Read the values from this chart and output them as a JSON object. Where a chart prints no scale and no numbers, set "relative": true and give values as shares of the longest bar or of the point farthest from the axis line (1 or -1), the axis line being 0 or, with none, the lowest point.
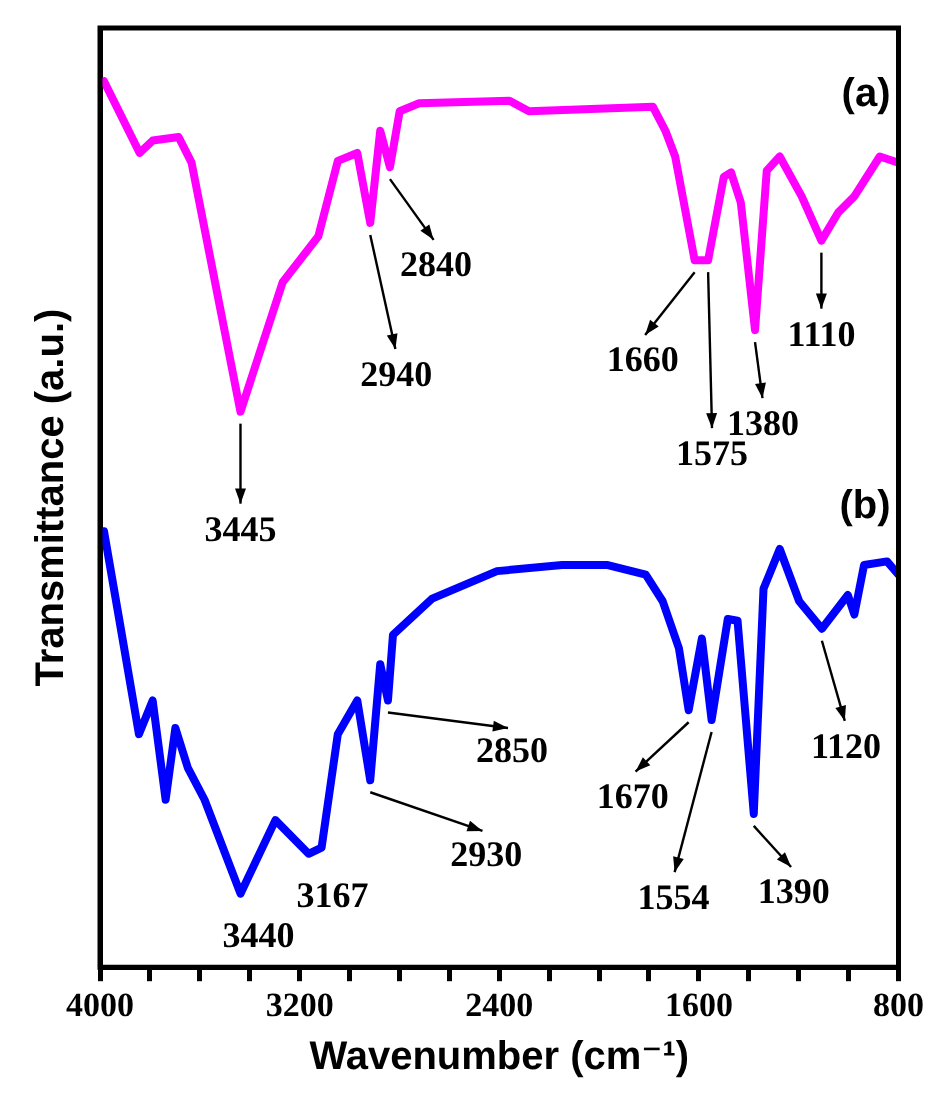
{
  "chart_data": {
    "type": "line",
    "relative": true,
    "xlabel": "Wavenumber (cm⁻¹)",
    "ylabel": "Transmittance (a.u.)",
    "xlim": [
      4000,
      800
    ],
    "xticks": [
      4000,
      {
        "value": 3800,
        "label": null
      },
      {
        "value": 3600,
        "label": null
      },
      {
        "value": 3400,
        "label": null
      },
      3200,
      {
        "value": 3000,
        "label": null
      },
      {
        "value": 2800,
        "label": null
      },
      {
        "value": 2600,
        "label": null
      },
      2400,
      {
        "value": 2200,
        "label": null
      },
      {
        "value": 2000,
        "label": null
      },
      {
        "value": 1800,
        "label": null
      },
      1600,
      {
        "value": 1400,
        "label": null
      },
      {
        "value": 1200,
        "label": null
      },
      {
        "value": 1000,
        "label": null
      },
      800
    ],
    "legend": false,
    "grid": false,
    "marker": "none",
    "line_style": "solid",
    "series": [
      {
        "name": "(a)",
        "color": "#ff00ff",
        "x": [
          3984,
          3841,
          3789,
          3685,
          3633,
          3437,
          3268,
          3125,
          3047,
          2969,
          2917,
          2877,
          2838,
          2799,
          2721,
          2359,
          2281,
          1784,
          1734,
          1695,
          1617,
          1563,
          1500,
          1471,
          1432,
          1375,
          1328,
          1276,
          1188,
          1109,
          1041,
          977,
          875,
          800
        ],
        "values": [
          1.0,
          0.919,
          0.933,
          0.937,
          0.908,
          0.627,
          0.773,
          0.825,
          0.91,
          0.919,
          0.84,
          0.944,
          0.903,
          0.966,
          0.975,
          0.978,
          0.966,
          0.971,
          0.944,
          0.915,
          0.798,
          0.798,
          0.892,
          0.897,
          0.863,
          0.719,
          0.899,
          0.915,
          0.87,
          0.82,
          0.852,
          0.87,
          0.915,
          0.908
        ]
      },
      {
        "name": "(b)",
        "color": "#0000ff",
        "x": [
          3984,
          3922,
          3844,
          3789,
          3737,
          3698,
          3648,
          3581,
          3437,
          3297,
          3164,
          3112,
          3047,
          2969,
          2917,
          2877,
          2846,
          2826,
          2669,
          2409,
          2148,
          1969,
          1813,
          1745,
          1680,
          1641,
          1588,
          1549,
          1484,
          1445,
          1380,
          1341,
          1276,
          1198,
          1107,
          1003,
          977,
          938,
          846,
          800
        ],
        "values": [
          0.492,
          0.391,
          0.263,
          0.301,
          0.189,
          0.27,
          0.225,
          0.189,
          0.083,
          0.166,
          0.128,
          0.135,
          0.263,
          0.301,
          0.211,
          0.342,
          0.301,
          0.375,
          0.416,
          0.447,
          0.454,
          0.454,
          0.443,
          0.413,
          0.36,
          0.29,
          0.371,
          0.279,
          0.393,
          0.391,
          0.173,
          0.427,
          0.472,
          0.413,
          0.382,
          0.42,
          0.398,
          0.454,
          0.458,
          0.443
        ]
      }
    ],
    "annotations": [
      {
        "text": "3445",
        "x": 3437,
        "y": 0.627
      },
      {
        "text": "2940",
        "x": 2917,
        "y": 0.84
      },
      {
        "text": "2840",
        "x": 2838,
        "y": 0.903
      },
      {
        "text": "1660",
        "x": 1617,
        "y": 0.798
      },
      {
        "text": "1575",
        "x": 1563,
        "y": 0.798
      },
      {
        "text": "1380",
        "x": 1375,
        "y": 0.719
      },
      {
        "text": "1110",
        "x": 1109,
        "y": 0.82
      },
      {
        "text": "3440",
        "x": 3437,
        "y": 0.083
      },
      {
        "text": "3167",
        "x": 3164,
        "y": 0.128
      },
      {
        "text": "2930",
        "x": 2917,
        "y": 0.211
      },
      {
        "text": "2850",
        "x": 2846,
        "y": 0.301
      },
      {
        "text": "1670",
        "x": 1641,
        "y": 0.29
      },
      {
        "text": "1554",
        "x": 1549,
        "y": 0.279
      },
      {
        "text": "1390",
        "x": 1380,
        "y": 0.173
      },
      {
        "text": "1120",
        "x": 1107,
        "y": 0.382
      }
    ]
  }
}
